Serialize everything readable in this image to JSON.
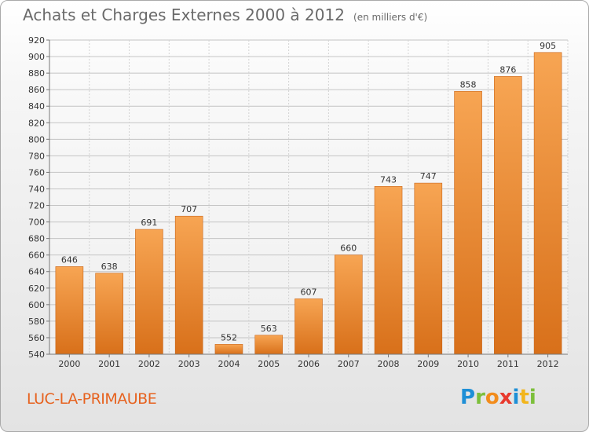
{
  "title": "Achats et Charges Externes 2000 à 2012",
  "unit": "(en milliers d'€)",
  "commune": "LUC-LA-PRIMAUBE",
  "logo": {
    "letters": [
      "P",
      "r",
      "o",
      "x",
      "i",
      "t",
      "i"
    ],
    "colors": [
      "#1e8fd6",
      "#7cbf3a",
      "#f28c1c",
      "#e8392d",
      "#1e8fd6",
      "#f2b51c",
      "#7cbf3a"
    ]
  },
  "chart_data": {
    "type": "bar",
    "categories": [
      "2000",
      "2001",
      "2002",
      "2003",
      "2004",
      "2005",
      "2006",
      "2007",
      "2008",
      "2009",
      "2010",
      "2011",
      "2012"
    ],
    "values": [
      646,
      638,
      691,
      707,
      552,
      563,
      607,
      660,
      743,
      747,
      858,
      876,
      905
    ],
    "ylim": [
      540,
      920
    ],
    "yticks": [
      540,
      560,
      580,
      600,
      620,
      640,
      660,
      680,
      700,
      720,
      740,
      760,
      780,
      800,
      820,
      840,
      860,
      880,
      900,
      920
    ],
    "grid": true,
    "bar_color": "#f28c28"
  }
}
